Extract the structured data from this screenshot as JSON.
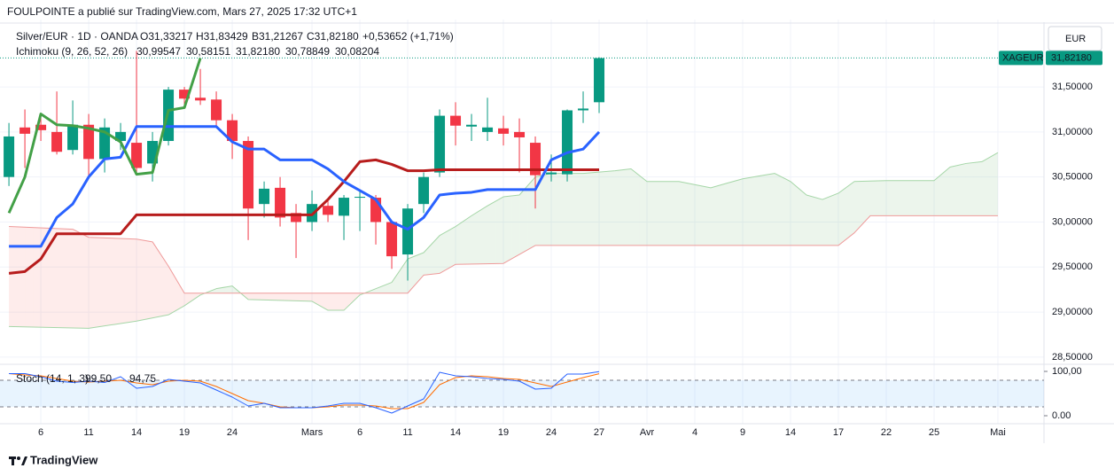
{
  "header": {
    "title": "FOULPOINTE a publié sur TradingView.com, Mars 27, 2025 17:32 UTC+1"
  },
  "footer": {
    "brand": "TradingView"
  },
  "chart_data": {
    "type": "candlestick",
    "symbol": "Silver/EUR · 1D · OANDA",
    "ohlc_legend": [
      "O31,33217",
      "H31,83429",
      "B31,21267",
      "C31,82180",
      "+0,53652 (+1,71%)"
    ],
    "currency": "EUR",
    "last_price": {
      "symbol": "XAGEUR",
      "value": 31.8218,
      "label": "31,82180"
    },
    "up_color": "#089981",
    "down_color": "#f23645",
    "candles": {
      "open": [
        30.5,
        31.05,
        31.08,
        31.0,
        30.8,
        31.08,
        30.7,
        30.9,
        30.88,
        30.65,
        30.9,
        31.47,
        31.38,
        31.36,
        31.13,
        30.9,
        30.2,
        30.38,
        30.1,
        30.0,
        30.18,
        30.07,
        30.27,
        30.27,
        30.0,
        29.64,
        30.2,
        30.55,
        31.18,
        31.06,
        31.0,
        31.04,
        31.0,
        30.88,
        30.53,
        30.53,
        31.24,
        31.33
      ],
      "high": [
        31.1,
        31.25,
        31.2,
        31.45,
        31.35,
        31.2,
        31.15,
        31.1,
        31.9,
        31.0,
        31.5,
        31.5,
        31.7,
        31.45,
        31.2,
        30.95,
        30.45,
        30.5,
        30.2,
        30.35,
        30.25,
        30.3,
        30.35,
        30.3,
        30.0,
        30.2,
        30.55,
        31.25,
        31.33,
        31.2,
        31.38,
        31.18,
        31.15,
        30.95,
        30.75,
        31.25,
        31.45,
        31.83
      ],
      "low": [
        30.4,
        30.6,
        30.9,
        30.75,
        30.75,
        30.5,
        30.55,
        30.8,
        30.55,
        30.45,
        30.85,
        31.3,
        31.3,
        31.05,
        30.7,
        29.8,
        30.05,
        29.95,
        29.6,
        29.9,
        30.0,
        29.8,
        29.9,
        29.75,
        29.48,
        29.35,
        30.1,
        30.5,
        30.85,
        30.9,
        30.9,
        30.85,
        30.55,
        30.15,
        30.45,
        30.45,
        31.1,
        31.21
      ],
      "close": [
        30.95,
        30.98,
        31.02,
        30.78,
        31.08,
        30.7,
        31.05,
        31.0,
        30.6,
        30.9,
        31.47,
        31.37,
        31.35,
        31.13,
        30.9,
        30.15,
        30.37,
        30.05,
        30.0,
        30.2,
        30.08,
        30.27,
        30.28,
        30.0,
        29.62,
        30.15,
        30.5,
        31.18,
        31.07,
        31.08,
        31.05,
        30.98,
        30.94,
        30.52,
        30.55,
        31.24,
        31.26,
        31.82
      ]
    },
    "xlim": [
      -0.56,
      64.89
    ],
    "xticks": [
      {
        "value": 2,
        "label": "6"
      },
      {
        "value": 5,
        "label": "11"
      },
      {
        "value": 8,
        "label": "14"
      },
      {
        "value": 11,
        "label": "19"
      },
      {
        "value": 14,
        "label": "24"
      },
      {
        "value": 19,
        "label": "Mars"
      },
      {
        "value": 22,
        "label": "6"
      },
      {
        "value": 25,
        "label": "11"
      },
      {
        "value": 28,
        "label": "14"
      },
      {
        "value": 31,
        "label": "19"
      },
      {
        "value": 34,
        "label": "24"
      },
      {
        "value": 37,
        "label": "27"
      },
      {
        "value": 40,
        "label": "Avr"
      },
      {
        "value": 43,
        "label": "4"
      },
      {
        "value": 46,
        "label": "9"
      },
      {
        "value": 49,
        "label": "14"
      },
      {
        "value": 52,
        "label": "17"
      },
      {
        "value": 55,
        "label": "22"
      },
      {
        "value": 58,
        "label": "25"
      },
      {
        "value": 62,
        "label": "Mai"
      }
    ],
    "ylim": [
      28.43,
      32.17
    ],
    "yticks": [
      {
        "value": 28.5,
        "label": "28,50000"
      },
      {
        "value": 29,
        "label": "29,00000"
      },
      {
        "value": 29.5,
        "label": "29,50000"
      },
      {
        "value": 30,
        "label": "30,00000"
      },
      {
        "value": 30.5,
        "label": "30,50000"
      },
      {
        "value": 31,
        "label": "31,00000"
      },
      {
        "value": 31.5,
        "label": "31,50000"
      }
    ],
    "grid": true,
    "ichimoku": {
      "name": "Ichimoku (9, 26, 52, 26)",
      "legend_values": [
        "30,99547",
        "30,58151",
        "31,82180",
        "30,78849",
        "30,08204"
      ],
      "conversion": {
        "color": "#2962ff",
        "values": [
          29.73,
          29.73,
          29.73,
          30.05,
          30.2,
          30.5,
          30.7,
          30.72,
          31.06,
          31.06,
          31.06,
          31.06,
          31.06,
          31.06,
          30.89,
          30.81,
          30.81,
          30.69,
          30.69,
          30.69,
          30.59,
          30.45,
          30.35,
          30.25,
          30.0,
          29.92,
          30.05,
          30.3,
          30.32,
          30.33,
          30.36,
          30.36,
          30.36,
          30.36,
          30.69,
          30.77,
          30.81,
          31.0
        ]
      },
      "base": {
        "color": "#b71c1c",
        "values": [
          29.43,
          29.45,
          29.59,
          29.87,
          29.87,
          29.87,
          29.87,
          29.87,
          30.08,
          30.08,
          30.08,
          30.08,
          30.08,
          30.08,
          30.08,
          30.08,
          30.08,
          30.08,
          30.08,
          30.08,
          30.25,
          30.45,
          30.67,
          30.69,
          30.64,
          30.57,
          30.57,
          30.58,
          30.58,
          30.58,
          30.58,
          30.58,
          30.58,
          30.58,
          30.58,
          30.58,
          30.58,
          30.58
        ]
      },
      "lagging": {
        "color": "#43a047",
        "values": [
          30.1,
          30.5,
          31.2,
          31.08,
          31.07,
          31.04,
          31.0,
          30.89,
          30.53,
          30.55,
          31.24,
          31.27,
          31.82
        ]
      },
      "span_a": {
        "color": "#a5d6a7",
        "x": [
          0,
          5,
          8,
          10,
          11,
          12,
          13,
          14,
          15,
          19,
          20,
          21,
          22,
          23,
          24,
          25,
          26,
          27,
          28,
          29,
          30,
          31,
          32,
          33,
          34,
          36,
          38,
          39,
          40,
          42,
          44,
          45,
          46,
          47,
          48,
          49,
          50,
          51,
          52,
          53,
          55,
          58,
          59,
          60,
          61,
          62
        ],
        "values": [
          28.84,
          28.82,
          28.9,
          28.97,
          29.07,
          29.19,
          29.26,
          29.29,
          29.14,
          29.12,
          29.02,
          29.02,
          29.19,
          29.26,
          29.33,
          29.59,
          29.66,
          29.85,
          29.95,
          30.07,
          30.18,
          30.28,
          30.3,
          30.5,
          30.54,
          30.54,
          30.57,
          30.59,
          30.45,
          30.45,
          30.38,
          30.43,
          30.48,
          30.51,
          30.54,
          30.45,
          30.3,
          30.25,
          30.32,
          30.45,
          30.46,
          30.46,
          30.61,
          30.65,
          30.67,
          30.77
        ]
      },
      "span_b": {
        "color": "#ef9a9a",
        "x": [
          0,
          4,
          5,
          8,
          9,
          10,
          11,
          14,
          25,
          26,
          27,
          28,
          31,
          33,
          52,
          53,
          54,
          62
        ],
        "values": [
          29.95,
          29.92,
          29.83,
          29.81,
          29.78,
          29.51,
          29.21,
          29.21,
          29.21,
          29.41,
          29.43,
          29.53,
          29.54,
          29.74,
          29.74,
          29.88,
          30.07,
          30.07
        ]
      }
    },
    "stoch": {
      "name": "Stoch (14, 1, 3)",
      "legend_values": [
        "99,50",
        "94,75"
      ],
      "ylim": [
        -18,
        112
      ],
      "yticks": [
        {
          "value": 100,
          "label": "100,00"
        },
        {
          "value": 0,
          "label": "0.00"
        }
      ],
      "bands": [
        80,
        20
      ],
      "k": {
        "color": "#2962ff",
        "values": [
          95,
          95,
          88,
          78,
          75,
          78,
          75,
          88,
          62,
          66,
          82,
          78,
          74,
          58,
          42,
          22,
          28,
          18,
          18,
          18,
          22,
          28,
          28,
          18,
          6,
          22,
          38,
          98,
          90,
          88,
          84,
          82,
          78,
          60,
          62,
          94,
          94,
          99.5
        ]
      },
      "d": {
        "color": "#ff6d00",
        "values": [
          95,
          92,
          90,
          84,
          78,
          76,
          78,
          80,
          74,
          70,
          78,
          80,
          78,
          66,
          50,
          34,
          28,
          20,
          18,
          18,
          20,
          24,
          24,
          22,
          16,
          16,
          30,
          70,
          86,
          90,
          88,
          84,
          82,
          74,
          66,
          76,
          86,
          94.75
        ]
      }
    }
  }
}
